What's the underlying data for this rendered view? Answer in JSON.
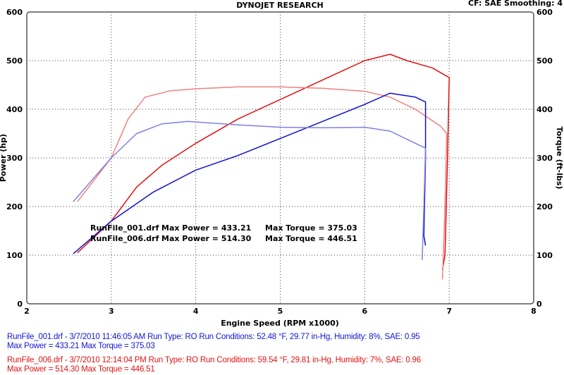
{
  "chart_data": {
    "type": "line",
    "title": "DYNOJET RESEARCH",
    "subtitle": "CF: SAE  Smoothing: 4",
    "xlabel": "Engine Speed (RPM x1000)",
    "ylabel_left": "Power (hp)",
    "ylabel_right": "Torque (ft-lbs)",
    "xlim": [
      2,
      8
    ],
    "ylim": [
      0,
      600
    ],
    "xticks": [
      "2",
      "3",
      "4",
      "5",
      "6",
      "7",
      "8"
    ],
    "yticks": [
      "0",
      "100",
      "200",
      "300",
      "400",
      "500",
      "600"
    ],
    "grid": true,
    "annotations": [
      {
        "file": "RunFile_001.drf",
        "power": "Max Power = 433.21",
        "torque": "Max Torque = 375.03"
      },
      {
        "file": "RunFile_006.drf",
        "power": "Max Power = 514.30",
        "torque": "Max Torque = 446.51"
      }
    ],
    "series": [
      {
        "name": "RunFile_006 Power",
        "color": "#e01010",
        "points": [
          [
            2.6,
            105
          ],
          [
            3.0,
            170
          ],
          [
            3.3,
            240
          ],
          [
            3.6,
            285
          ],
          [
            4.0,
            330
          ],
          [
            4.5,
            380
          ],
          [
            5.0,
            420
          ],
          [
            5.5,
            460
          ],
          [
            6.0,
            500
          ],
          [
            6.3,
            513
          ],
          [
            6.5,
            500
          ],
          [
            6.8,
            485
          ],
          [
            6.95,
            470
          ],
          [
            7.0,
            465
          ],
          [
            6.98,
            300
          ],
          [
            6.95,
            100
          ],
          [
            6.92,
            70
          ]
        ]
      },
      {
        "name": "RunFile_006 Torque",
        "color": "#f08080",
        "points": [
          [
            2.6,
            210
          ],
          [
            3.0,
            300
          ],
          [
            3.2,
            380
          ],
          [
            3.4,
            425
          ],
          [
            3.7,
            438
          ],
          [
            4.0,
            442
          ],
          [
            4.5,
            446
          ],
          [
            5.0,
            446
          ],
          [
            5.5,
            443
          ],
          [
            6.0,
            437
          ],
          [
            6.3,
            425
          ],
          [
            6.6,
            400
          ],
          [
            6.9,
            365
          ],
          [
            6.97,
            350
          ],
          [
            6.95,
            200
          ],
          [
            6.92,
            50
          ]
        ]
      },
      {
        "name": "RunFile_001 Power",
        "color": "#1010d0",
        "points": [
          [
            2.55,
            103
          ],
          [
            3.0,
            170
          ],
          [
            3.5,
            230
          ],
          [
            4.0,
            275
          ],
          [
            4.5,
            305
          ],
          [
            5.0,
            340
          ],
          [
            5.5,
            375
          ],
          [
            6.0,
            410
          ],
          [
            6.3,
            433
          ],
          [
            6.6,
            425
          ],
          [
            6.72,
            415
          ],
          [
            6.72,
            300
          ],
          [
            6.7,
            140
          ],
          [
            6.72,
            120
          ]
        ]
      },
      {
        "name": "RunFile_001 Torque",
        "color": "#8080e0",
        "points": [
          [
            2.55,
            210
          ],
          [
            3.0,
            300
          ],
          [
            3.3,
            350
          ],
          [
            3.6,
            370
          ],
          [
            3.9,
            375
          ],
          [
            4.5,
            368
          ],
          [
            5.0,
            363
          ],
          [
            5.5,
            362
          ],
          [
            6.0,
            363
          ],
          [
            6.3,
            355
          ],
          [
            6.6,
            330
          ],
          [
            6.72,
            320
          ],
          [
            6.7,
            200
          ],
          [
            6.68,
            90
          ]
        ]
      }
    ]
  },
  "footer": [
    {
      "line1": "RunFile_001.drf - 3/7/2010 11:46:05 AM  Run Type: RO  Run Conditions: 52.48 °F, 29.77 in-Hg,  Humidity:  8%, SAE: 0.95",
      "line2": "Max Power = 433.21  Max Torque = 375.03",
      "color": "#1515d5"
    },
    {
      "line1": "RunFile_006.drf - 3/7/2010 12:14:04 PM  Run Type: RO  Run Conditions: 59.54 °F, 29.81 in-Hg,  Humidity:  7%, SAE: 0.96",
      "line2": "Max Power = 514.30  Max Torque = 446.51",
      "color": "#e01515"
    }
  ]
}
